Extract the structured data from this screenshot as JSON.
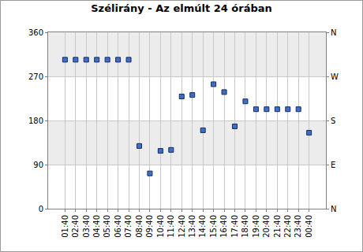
{
  "chart_data": {
    "type": "scatter",
    "title": "Szélirány - Az elmúlt 24 órában",
    "categories": [
      "01:40",
      "02:40",
      "03:40",
      "04:40",
      "05:40",
      "06:40",
      "07:40",
      "08:40",
      "09:40",
      "10:40",
      "11:40",
      "12:40",
      "13:40",
      "14:40",
      "15:40",
      "16:40",
      "17:40",
      "18:40",
      "19:40",
      "20:40",
      "21:40",
      "22:40",
      "23:40",
      "00:40"
    ],
    "values": [
      304,
      304,
      304,
      304,
      304,
      304,
      304,
      128,
      72,
      118,
      120,
      229,
      232,
      160,
      254,
      238,
      168,
      219,
      203,
      203,
      203,
      203,
      203,
      155
    ],
    "color": "#3d6ec9",
    "marker": "square",
    "ylim": [
      0,
      360
    ],
    "yticks": [
      0,
      90,
      180,
      270,
      360
    ],
    "y2lim": [
      0,
      360
    ],
    "y2ticks": [
      {
        "value": 0,
        "label": "N"
      },
      {
        "value": 90,
        "label": "E"
      },
      {
        "value": 180,
        "label": "S"
      },
      {
        "value": 270,
        "label": "W"
      },
      {
        "value": 360,
        "label": "N"
      }
    ],
    "grid": true
  }
}
